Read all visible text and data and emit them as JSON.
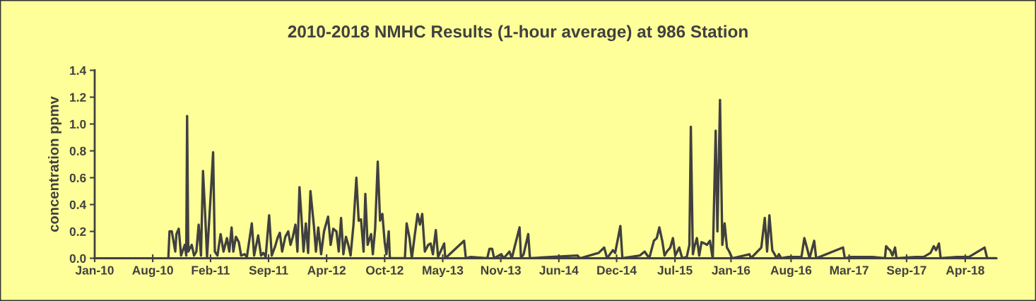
{
  "chart_data": {
    "type": "line",
    "title": "2010-2018 NMHC Results (1-hour average) at 986 Station",
    "ylabel": "concentration ppmv",
    "x": [
      "2010-10-01",
      "2010-10-05",
      "2010-10-13",
      "2010-10-25",
      "2010-10-29",
      "2010-11-06",
      "2010-11-14",
      "2010-11-27",
      "2010-12-02",
      "2010-12-05",
      "2010-12-09",
      "2010-12-21",
      "2010-12-29",
      "2011-01-06",
      "2011-01-14",
      "2011-01-22",
      "2011-01-29",
      "2011-02-05",
      "2011-02-12",
      "2011-02-26",
      "2011-03-05",
      "2011-03-11",
      "2011-03-20",
      "2011-03-31",
      "2011-04-10",
      "2011-04-22",
      "2011-04-30",
      "2011-05-08",
      "2011-05-14",
      "2011-05-23",
      "2011-06-02",
      "2011-06-10",
      "2011-06-22",
      "2011-06-30",
      "2011-07-17",
      "2011-07-25",
      "2011-08-08",
      "2011-08-18",
      "2011-08-26",
      "2011-09-03",
      "2011-09-15",
      "2011-09-24",
      "2011-10-06",
      "2011-10-14",
      "2011-10-22",
      "2011-10-30",
      "2011-11-10",
      "2011-11-20",
      "2011-11-28",
      "2011-12-06",
      "2011-12-15",
      "2011-12-22",
      "2011-12-29",
      "2012-01-05",
      "2012-01-12",
      "2012-01-20",
      "2012-01-28",
      "2012-02-05",
      "2012-02-17",
      "2012-02-24",
      "2012-03-03",
      "2012-03-13",
      "2012-03-23",
      "2012-04-06",
      "2012-04-15",
      "2012-04-24",
      "2012-05-05",
      "2012-05-13",
      "2012-05-21",
      "2012-05-29",
      "2012-06-07",
      "2012-06-15",
      "2012-06-23",
      "2012-07-03",
      "2012-07-13",
      "2012-07-21",
      "2012-07-29",
      "2012-08-07",
      "2012-08-13",
      "2012-08-21",
      "2012-09-02",
      "2012-09-08",
      "2012-09-16",
      "2012-09-25",
      "2012-10-03",
      "2012-10-11",
      "2012-10-19",
      "2012-10-25",
      "2012-11-02",
      "2012-11-06",
      "2012-12-28",
      "2013-01-03",
      "2013-01-13",
      "2013-01-21",
      "2013-01-31",
      "2013-02-10",
      "2013-02-18",
      "2013-02-26",
      "2013-03-07",
      "2013-03-19",
      "2013-03-27",
      "2013-04-04",
      "2013-04-14",
      "2013-04-22",
      "2013-05-13",
      "2013-05-17",
      "2013-07-21",
      "2013-07-27",
      "2013-08-13",
      "2013-10-09",
      "2013-10-17",
      "2013-10-26",
      "2013-11-02",
      "2013-11-27",
      "2013-12-05",
      "2013-12-25",
      "2014-01-02",
      "2014-01-29",
      "2014-02-03",
      "2014-02-12",
      "2014-02-28",
      "2014-03-06",
      "2014-05-16",
      "2014-08-18",
      "2014-08-26",
      "2014-10-30",
      "2014-11-18",
      "2014-11-28",
      "2014-12-18",
      "2014-12-26",
      "2015-01-13",
      "2015-01-20",
      "2015-03-21",
      "2015-04-07",
      "2015-04-23",
      "2015-05-09",
      "2015-05-19",
      "2015-05-28",
      "2015-06-07",
      "2015-06-15",
      "2015-06-23",
      "2015-07-05",
      "2015-07-14",
      "2015-07-22",
      "2015-08-05",
      "2015-08-15",
      "2015-08-31",
      "2015-09-09",
      "2015-09-14",
      "2015-09-21",
      "2015-09-27",
      "2015-10-05",
      "2015-10-13",
      "2015-10-21",
      "2015-11-01",
      "2015-11-09",
      "2015-11-19",
      "2015-11-27",
      "2015-11-29",
      "2015-12-09",
      "2015-12-15",
      "2015-12-24",
      "2016-01-01",
      "2016-01-09",
      "2016-01-17",
      "2016-01-25",
      "2016-02-04",
      "2016-04-04",
      "2016-04-09",
      "2016-05-15",
      "2016-05-27",
      "2016-06-04",
      "2016-06-12",
      "2016-06-22",
      "2016-06-30",
      "2016-07-07",
      "2016-07-15",
      "2016-07-23",
      "2016-08-16",
      "2016-10-01",
      "2016-10-11",
      "2016-10-21",
      "2016-10-29",
      "2016-11-14",
      "2016-11-21",
      "2017-02-22",
      "2017-02-28",
      "2017-03-20",
      "2017-04-18",
      "2017-06-04",
      "2017-07-17",
      "2017-07-21",
      "2017-07-29",
      "2017-08-04",
      "2017-08-12",
      "2017-08-21",
      "2017-08-26",
      "2017-10-31",
      "2017-11-28",
      "2017-12-22",
      "2018-01-02",
      "2018-01-10",
      "2018-01-20",
      "2018-01-26",
      "2018-03-22",
      "2018-05-04",
      "2018-06-27",
      "2018-07-06",
      "2018-08-01"
    ],
    "values": [
      0,
      0.2,
      0.2,
      0.05,
      0.18,
      0.22,
      0.02,
      0.1,
      0.02,
      1.06,
      0.05,
      0.1,
      0.02,
      0.05,
      0.25,
      0.02,
      0.65,
      0.35,
      0.01,
      0.52,
      0.79,
      0.05,
      0.02,
      0.18,
      0.05,
      0.15,
      0.05,
      0.23,
      0.05,
      0.16,
      0.12,
      0.02,
      0.03,
      0.01,
      0.26,
      0.02,
      0.17,
      0.02,
      0.04,
      0.01,
      0.32,
      0.02,
      0.09,
      0.15,
      0.19,
      0.05,
      0.16,
      0.2,
      0.1,
      0.16,
      0.25,
      0.05,
      0.53,
      0.3,
      0.05,
      0.26,
      0.04,
      0.5,
      0.24,
      0.05,
      0.23,
      0.03,
      0.2,
      0.31,
      0.1,
      0.22,
      0.2,
      0.05,
      0.3,
      0.03,
      0.16,
      0.1,
      0.02,
      0.25,
      0.6,
      0.28,
      0.29,
      0.05,
      0.48,
      0.1,
      0.18,
      0.03,
      0.22,
      0.72,
      0.28,
      0.33,
      0.12,
      0.03,
      0.2,
      0,
      0,
      0.26,
      0.15,
      0,
      0.17,
      0.33,
      0.25,
      0.33,
      0.05,
      0.1,
      0.11,
      0.03,
      0.21,
      0.01,
      0.11,
      0,
      0.13,
      0,
      0.01,
      0,
      0.07,
      0.07,
      0,
      0.03,
      0,
      0.05,
      0,
      0.23,
      0,
      0.03,
      0.18,
      0,
      0.01,
      0.02,
      0,
      0.04,
      0.08,
      0,
      0.06,
      0.04,
      0.24,
      0,
      0.02,
      0.05,
      0,
      0.13,
      0.15,
      0.23,
      0.13,
      0.02,
      0.05,
      0.08,
      0.15,
      0.02,
      0.08,
      0,
      0.01,
      0.1,
      0.98,
      0.03,
      0.09,
      0.15,
      0.02,
      0.12,
      0.11,
      0.1,
      0.13,
      0.02,
      0,
      0.95,
      0.2,
      1.18,
      0.1,
      0.26,
      0.08,
      0.05,
      0,
      0.03,
      0,
      0.08,
      0.3,
      0.05,
      0.32,
      0.06,
      0.03,
      0,
      0.03,
      0,
      0.01,
      0.01,
      0.15,
      0.07,
      0,
      0.13,
      0,
      0.08,
      0,
      0.01,
      0.01,
      0.01,
      0,
      0.09,
      0.07,
      0.06,
      0.02,
      0.08,
      0,
      0.01,
      0.01,
      0.04,
      0.09,
      0.06,
      0.11,
      0,
      0.01,
      0.01,
      0.08,
      0,
      0
    ],
    "color": "#404040",
    "xlim": [
      "2010-01-19",
      "2018-08-07"
    ],
    "xticks": [
      {
        "value": "2010-01-19",
        "label": "Jan-10"
      },
      {
        "value": "2010-08-08",
        "label": "Aug-10"
      },
      {
        "value": "2011-02-24",
        "label": "Feb-11"
      },
      {
        "value": "2011-09-13",
        "label": "Sep-11"
      },
      {
        "value": "2012-04-01",
        "label": "Apr-12"
      },
      {
        "value": "2012-10-19",
        "label": "Oct-12"
      },
      {
        "value": "2013-05-08",
        "label": "May-13"
      },
      {
        "value": "2013-11-25",
        "label": "Nov-13"
      },
      {
        "value": "2014-06-14",
        "label": "Jun-14"
      },
      {
        "value": "2014-12-31",
        "label": "Dec-14"
      },
      {
        "value": "2015-07-21",
        "label": "Jul-15"
      },
      {
        "value": "2016-01-31",
        "label": "Jan-16"
      },
      {
        "value": "2016-08-26",
        "label": "Aug-16"
      },
      {
        "value": "2017-03-15",
        "label": "Mar-17"
      },
      {
        "value": "2017-09-30",
        "label": "Sep-17"
      },
      {
        "value": "2018-04-21",
        "label": "Apr-18"
      }
    ],
    "ylim": [
      0,
      1.4
    ],
    "yticks": [
      {
        "value": 0,
        "label": "0.0"
      },
      {
        "value": 0.2,
        "label": "0.2"
      },
      {
        "value": 0.4,
        "label": "0.4"
      },
      {
        "value": 0.6,
        "label": "0.6"
      },
      {
        "value": 0.8,
        "label": "0.8"
      },
      {
        "value": 1.0,
        "label": "1.0"
      },
      {
        "value": 1.2,
        "label": "1.2"
      },
      {
        "value": 1.4,
        "label": "1.4"
      }
    ],
    "line_style": "solid"
  }
}
